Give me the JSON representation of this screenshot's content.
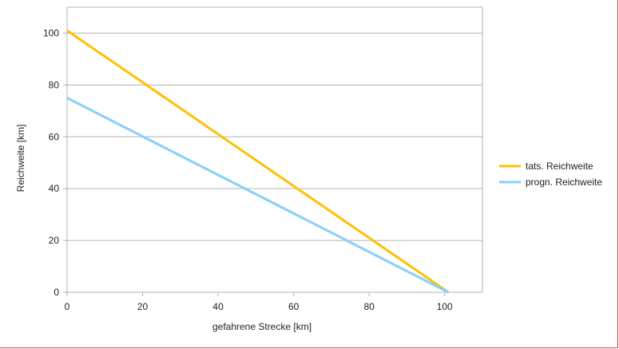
{
  "chart_data": {
    "type": "line",
    "title": "",
    "xlabel": "gefahrene Strecke [km]",
    "ylabel": "Reichweite [km]",
    "xlim": [
      0,
      110
    ],
    "ylim": [
      0,
      110
    ],
    "xticks": [
      0,
      20,
      40,
      60,
      80,
      100
    ],
    "yticks": [
      0,
      20,
      40,
      60,
      80,
      100
    ],
    "grid": "horizontal",
    "legend": "right",
    "series": [
      {
        "name": "tats. Reichweite",
        "color": "#ffc000",
        "x": [
          0,
          101
        ],
        "y": [
          101,
          0
        ]
      },
      {
        "name": "progn. Reichweite",
        "color": "#87cefa",
        "x": [
          0,
          101
        ],
        "y": [
          75,
          0
        ]
      }
    ]
  }
}
